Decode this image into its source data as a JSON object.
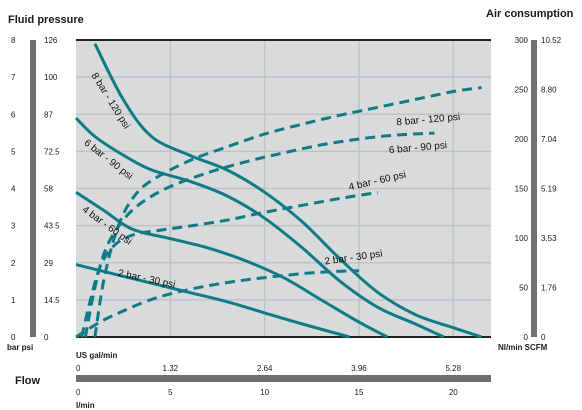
{
  "colors": {
    "plot_bg": "#d8dadb",
    "grid": "#bfc3c5",
    "frame": "#222222",
    "curve": "#0f7b86",
    "bar": "#6f6f70"
  },
  "titles": {
    "left": "Fluid pressure",
    "right": "Air consumption"
  },
  "flow_label": "Flow",
  "left_axis": {
    "bar_ticks": [
      "8",
      "7",
      "6",
      "5",
      "4",
      "3",
      "2",
      "1",
      "0"
    ],
    "psi_ticks": [
      "126",
      "100",
      "87",
      "72.5",
      "58",
      "43.5",
      "29",
      "14.5",
      "0"
    ],
    "unit_label": "bar psi"
  },
  "right_axis": {
    "nl_ticks": [
      "300",
      "250",
      "200",
      "150",
      "100",
      "50",
      "0"
    ],
    "scfm_ticks": [
      "10.52",
      "8.80",
      "7.04",
      "5.19",
      "3.53",
      "1.76",
      "0"
    ],
    "unit_label": "Nl/min SCFM"
  },
  "bottom_axis": {
    "gal_label": "US gal/min",
    "gal_ticks": [
      "0",
      "1.32",
      "2.64",
      "3.96",
      "5.28"
    ],
    "lmin_ticks": [
      "0",
      "5",
      "10",
      "15",
      "20"
    ],
    "lmin_label": "l/min"
  },
  "chart_data": {
    "type": "line",
    "x_unit": "l/min",
    "x_range": [
      0,
      22
    ],
    "y_left_unit": "bar",
    "y_left_range": [
      0,
      8
    ],
    "y_right_unit": "Nl/min",
    "y_right_range": [
      0,
      300
    ],
    "grid": true,
    "series": [
      {
        "name": "8 bar - 120 psi",
        "kind": "fluid_pressure",
        "style": "solid",
        "x": [
          1.0,
          2.5,
          4.0,
          6.0,
          8.0,
          10.0,
          12.0,
          14.0,
          16.0,
          18.0,
          20.0,
          21.5
        ],
        "y": [
          7.9,
          6.4,
          5.4,
          4.9,
          4.5,
          3.9,
          3.1,
          2.1,
          1.2,
          0.6,
          0.25,
          0.0
        ]
      },
      {
        "name": "6 bar - 90 psi",
        "kind": "fluid_pressure",
        "style": "solid",
        "x": [
          0.0,
          1.0,
          2.5,
          4.0,
          6.0,
          8.0,
          10.0,
          12.0,
          14.0,
          16.0,
          18.0,
          19.5
        ],
        "y": [
          5.9,
          5.4,
          4.9,
          4.5,
          4.2,
          3.8,
          3.2,
          2.4,
          1.5,
          0.8,
          0.35,
          0.0
        ]
      },
      {
        "name": "4 bar - 60 psi",
        "kind": "fluid_pressure",
        "style": "solid",
        "x": [
          0.0,
          1.5,
          3.0,
          5.0,
          7.0,
          9.0,
          11.0,
          13.0,
          15.0,
          16.5
        ],
        "y": [
          3.9,
          3.4,
          2.9,
          2.65,
          2.4,
          2.05,
          1.6,
          1.0,
          0.4,
          0.0
        ]
      },
      {
        "name": "2 bar - 30 psi",
        "kind": "fluid_pressure",
        "style": "solid",
        "x": [
          0.0,
          2.0,
          4.0,
          6.0,
          8.0,
          10.0,
          12.0,
          14.5
        ],
        "y": [
          1.95,
          1.7,
          1.45,
          1.2,
          0.95,
          0.65,
          0.35,
          0.0
        ]
      },
      {
        "name": "8 bar - 120 psi",
        "kind": "air_consumption",
        "style": "dashed",
        "x": [
          1.0,
          1.5,
          2.2,
          3.0,
          4.0,
          6.0,
          8.0,
          10.0,
          12.0,
          14.0,
          16.0,
          18.0,
          20.0,
          21.5
        ],
        "y": [
          0,
          60,
          110,
          140,
          158,
          178,
          192,
          205,
          215,
          224,
          232,
          240,
          248,
          252
        ]
      },
      {
        "name": "6 bar - 90 psi",
        "kind": "air_consumption",
        "style": "dashed",
        "x": [
          0.5,
          1.0,
          1.6,
          2.5,
          3.5,
          5.0,
          7.0,
          9.0,
          11.0,
          13.0,
          15.0,
          17.0,
          19.0
        ],
        "y": [
          0,
          50,
          90,
          118,
          136,
          152,
          166,
          177,
          186,
          194,
          200,
          204,
          206
        ]
      },
      {
        "name": "4 bar - 60 psi",
        "kind": "air_consumption",
        "style": "dashed",
        "x": [
          0.3,
          0.8,
          1.3,
          2.0,
          3.0,
          4.5,
          6.0,
          8.0,
          10.0,
          12.0,
          14.0,
          16.0
        ],
        "y": [
          0,
          40,
          72,
          92,
          103,
          108,
          112,
          118,
          126,
          133,
          140,
          146
        ]
      },
      {
        "name": "2 bar - 30 psi",
        "kind": "air_consumption",
        "style": "dashed",
        "x": [
          0.0,
          1.0,
          2.0,
          4.0,
          6.0,
          8.0,
          10.0,
          12.0,
          13.5,
          15.0
        ],
        "y": [
          0,
          12,
          22,
          38,
          48,
          55,
          60,
          64,
          66,
          67
        ]
      }
    ],
    "labels": [
      {
        "text": "8 bar - 120 psi",
        "x": 0.8,
        "y": 7.05,
        "angle": 58
      },
      {
        "text": "6 bar - 90 psi",
        "x": 0.4,
        "y": 5.2,
        "angle": 38
      },
      {
        "text": "4 bar - 60 psi",
        "x": 0.3,
        "y": 3.4,
        "angle": 36
      },
      {
        "text": "2 bar - 30 psi",
        "x": 2.2,
        "y": 1.65,
        "angle": 12
      },
      {
        "text": "8 bar - 120 psi",
        "x": 17.0,
        "y": 5.7,
        "angle": -5
      },
      {
        "text": "6 bar - 90 psi",
        "x": 16.6,
        "y": 4.95,
        "angle": -5
      },
      {
        "text": "4 bar - 60 psi",
        "x": 14.5,
        "y": 3.95,
        "angle": -13
      },
      {
        "text": "2 bar - 30 psi",
        "x": 13.2,
        "y": 1.95,
        "angle": -8
      }
    ]
  }
}
